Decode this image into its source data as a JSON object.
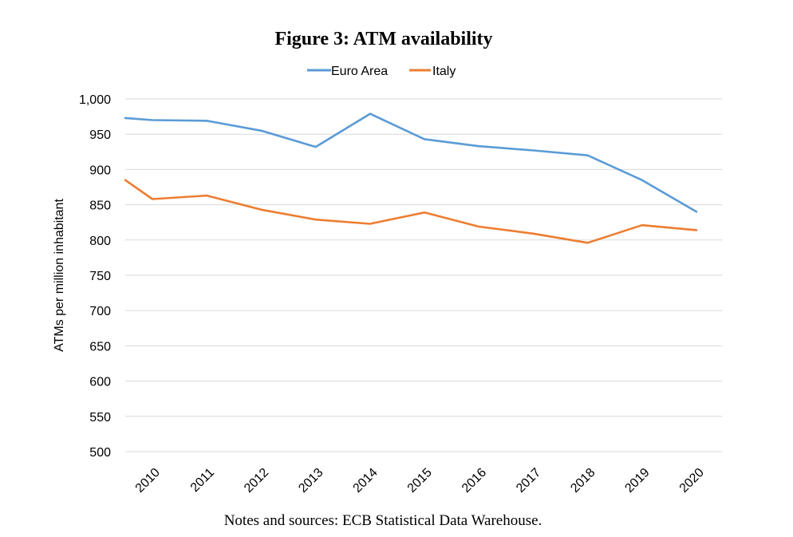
{
  "figure": {
    "title": "Figure 3: ATM availability",
    "note": "Notes and sources: ECB Statistical Data Warehouse."
  },
  "chart_data": {
    "type": "line",
    "title": "Figure 3: ATM availability",
    "xlabel": "",
    "ylabel": "ATMs per million inhabitant",
    "ylim": [
      500,
      1000
    ],
    "yticks": [
      500,
      550,
      600,
      650,
      700,
      750,
      800,
      850,
      900,
      950,
      1000
    ],
    "ytick_labels": [
      "500",
      "550",
      "600",
      "650",
      "700",
      "750",
      "800",
      "850",
      "900",
      "950",
      "1,000"
    ],
    "x_labels": [
      "2010",
      "2011",
      "2012",
      "2013",
      "2014",
      "2015",
      "2016",
      "2017",
      "2018",
      "2019",
      "2020"
    ],
    "grid": true,
    "legend_position": "top-center",
    "series": [
      {
        "name": "Euro Area",
        "color": "#5B9BD5",
        "x": [
          2009.5,
          2010,
          2011,
          2012,
          2013,
          2014,
          2015,
          2016,
          2017,
          2018,
          2019,
          2020
        ],
        "values": [
          973,
          970,
          969,
          955,
          932,
          979,
          943,
          933,
          927,
          920,
          885,
          840
        ]
      },
      {
        "name": "Italy",
        "color": "#ED7D31",
        "x": [
          2009.5,
          2010,
          2011,
          2012,
          2013,
          2014,
          2015,
          2016,
          2017,
          2018,
          2019,
          2020
        ],
        "values": [
          885,
          858,
          863,
          843,
          829,
          823,
          839,
          819,
          809,
          796,
          821,
          814
        ]
      }
    ]
  }
}
